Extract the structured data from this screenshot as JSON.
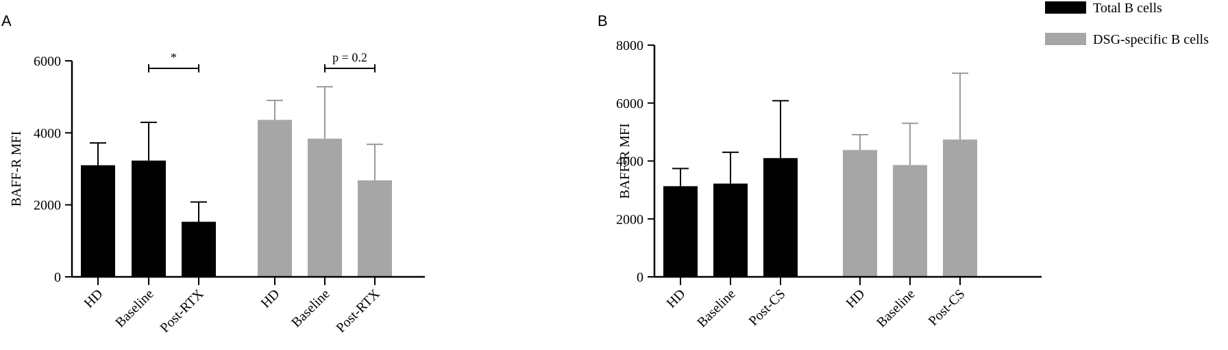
{
  "legend": {
    "total": "Total B cells",
    "dsg": "DSG-specific B cells"
  },
  "colors": {
    "total": "#000000",
    "dsg": "#a6a6a6",
    "dsg_error": "#9a9a9a"
  },
  "chart_data": [
    {
      "panel": "A",
      "type": "bar",
      "ylabel": "BAFF-R MFI",
      "ylim": [
        0,
        6000
      ],
      "yticks": [
        0,
        2000,
        4000,
        6000
      ],
      "groups": [
        {
          "series": "Total B cells",
          "categories": [
            "HD",
            "Baseline",
            "Post-RTX"
          ],
          "values": [
            3100,
            3230,
            1530
          ],
          "errors": [
            620,
            1060,
            550
          ]
        },
        {
          "series": "DSG-specific B cells",
          "categories": [
            "HD",
            "Baseline",
            "Post-RTX"
          ],
          "values": [
            4360,
            3840,
            2680
          ],
          "errors": [
            540,
            1440,
            1000
          ]
        }
      ],
      "annotations": [
        {
          "text": "*",
          "from": "Baseline (Total B cells)",
          "to": "Post-RTX (Total B cells)"
        },
        {
          "text": "p = 0.2",
          "from": "Baseline (DSG-specific B cells)",
          "to": "Post-RTX (DSG-specific B cells)"
        }
      ]
    },
    {
      "panel": "B",
      "type": "bar",
      "ylabel": "BAFF-R MFI",
      "ylim": [
        0,
        8000
      ],
      "yticks": [
        0,
        2000,
        4000,
        6000,
        8000
      ],
      "groups": [
        {
          "series": "Total B cells",
          "categories": [
            "HD",
            "Baseline",
            "Post-CS"
          ],
          "values": [
            3130,
            3220,
            4100
          ],
          "errors": [
            610,
            1080,
            1980
          ]
        },
        {
          "series": "DSG-specific B cells",
          "categories": [
            "HD",
            "Baseline",
            "Post-CS"
          ],
          "values": [
            4380,
            3860,
            4740
          ],
          "errors": [
            530,
            1440,
            2290
          ]
        }
      ],
      "legend_position": "top-right"
    }
  ]
}
